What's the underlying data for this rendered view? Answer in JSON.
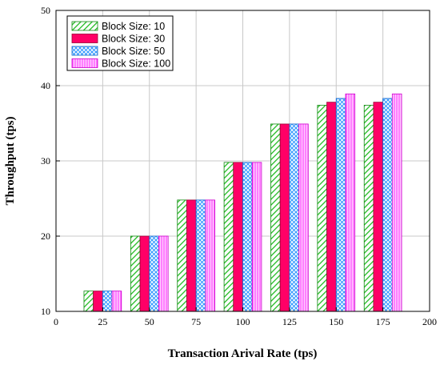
{
  "chart_data": {
    "type": "bar",
    "xlabel": "Transaction Arival Rate (tps)",
    "ylabel": "Throughput (tps)",
    "xlim": [
      0,
      200
    ],
    "ylim": [
      10,
      50
    ],
    "x_ticks": [
      "0",
      "25",
      "50",
      "75",
      "100",
      "125",
      "150",
      "175",
      "200"
    ],
    "y_ticks": [
      "10",
      "20",
      "30",
      "40",
      "50"
    ],
    "categories": [
      25,
      50,
      75,
      100,
      125,
      150,
      175
    ],
    "grid": true,
    "legend_position": "top-left",
    "series": [
      {
        "name": "Block Size: 10",
        "values": [
          12.7,
          20.0,
          24.8,
          29.8,
          34.9,
          37.4,
          37.4
        ],
        "color": "#33cc33",
        "pattern": "diagonal-lines"
      },
      {
        "name": "Block Size: 30",
        "values": [
          12.7,
          20.0,
          24.8,
          29.8,
          34.9,
          37.8,
          37.8
        ],
        "color": "#ff0066",
        "pattern": "solid"
      },
      {
        "name": "Block Size: 50",
        "values": [
          12.7,
          20.0,
          24.8,
          29.8,
          34.9,
          38.3,
          38.3
        ],
        "color": "#3399ff",
        "pattern": "crosshatch"
      },
      {
        "name": "Block Size: 100",
        "values": [
          12.7,
          20.0,
          24.8,
          29.8,
          34.9,
          38.9,
          38.9
        ],
        "color": "#ff33ff",
        "pattern": "vertical-lines"
      }
    ]
  }
}
